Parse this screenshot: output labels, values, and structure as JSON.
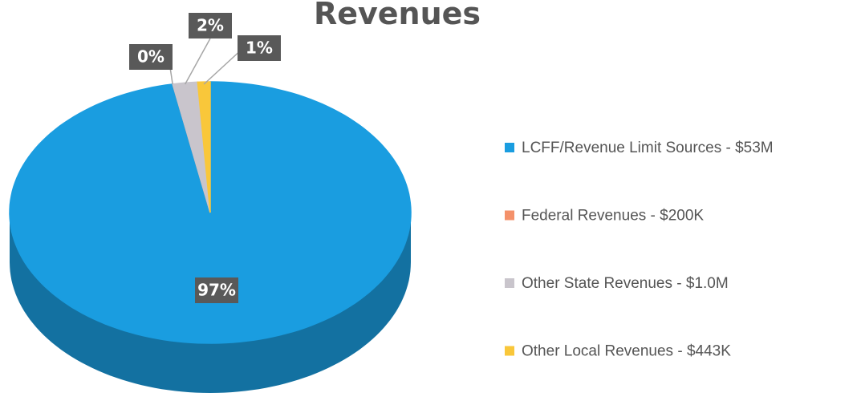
{
  "chart_data": {
    "type": "pie",
    "title": "Revenues",
    "categories": [
      "LCFF/Revenue Limit Sources - $53M",
      "Federal Revenues - $200K",
      "Other State Revenues - $1.0M",
      "Other Local Revenues - $443K"
    ],
    "values": [
      97,
      0,
      2,
      1
    ],
    "value_labels": [
      "97%",
      "0%",
      "2%",
      "1%"
    ],
    "colors": [
      "#1a9de0",
      "#f4916a",
      "#c9c5cc",
      "#f9c73a"
    ],
    "legend": "right"
  }
}
